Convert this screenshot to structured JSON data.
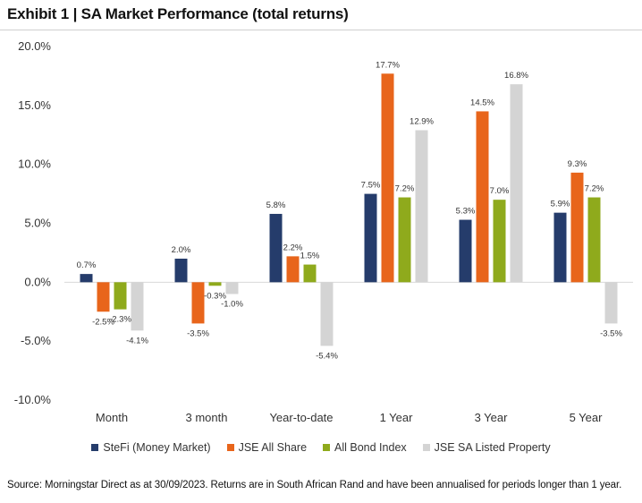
{
  "header": {
    "title": "Exhibit 1 | SA Market Performance (total returns)"
  },
  "footer": {
    "source": "Source: Morningstar Direct as at 30/09/2023. Returns are in South African Rand and have been annualised for periods longer than 1 year."
  },
  "chart_data": {
    "type": "bar",
    "categories": [
      "Month",
      "3 month",
      "Year-to-date",
      "1 Year",
      "3 Year",
      "5 Year"
    ],
    "series": [
      {
        "name": "SteFi (Money Market)",
        "color": "#253c6b",
        "values": [
          0.7,
          2.0,
          5.8,
          7.5,
          5.3,
          5.9
        ],
        "labels": [
          "0.7%",
          "2.0%",
          "5.8%",
          "7.5%",
          "5.3%",
          "5.9%"
        ]
      },
      {
        "name": "JSE All Share",
        "color": "#e8651b",
        "values": [
          -2.5,
          -3.5,
          2.2,
          17.7,
          14.5,
          9.3
        ],
        "labels": [
          "-2.5%",
          "-3.5%",
          "2.2%",
          "17.7%",
          "14.5%",
          "9.3%"
        ]
      },
      {
        "name": "All Bond Index",
        "color": "#8faa1c",
        "values": [
          -2.3,
          -0.3,
          1.5,
          7.2,
          7.0,
          7.2
        ],
        "labels": [
          "-2.3%",
          "-0.3%",
          "1.5%",
          "7.2%",
          "7.0%",
          "7.2%"
        ]
      },
      {
        "name": "JSE SA Listed Property",
        "color": "#d4d4d4",
        "values": [
          -4.1,
          -1.0,
          -5.4,
          12.9,
          16.8,
          -3.5
        ],
        "labels": [
          "-4.1%",
          "-1.0%",
          "-5.4%",
          "12.9%",
          "16.8%",
          "-3.5%"
        ]
      }
    ],
    "ylim": [
      -10.0,
      20.0
    ],
    "yticks": [
      20.0,
      15.0,
      10.0,
      5.0,
      0.0,
      -5.0,
      -10.0
    ],
    "ytick_labels": [
      "20.0%",
      "15.0%",
      "10.0%",
      "5.0%",
      "0.0%",
      "-5.0%",
      "-10.0%"
    ],
    "grid": false,
    "legend_position": "bottom"
  }
}
